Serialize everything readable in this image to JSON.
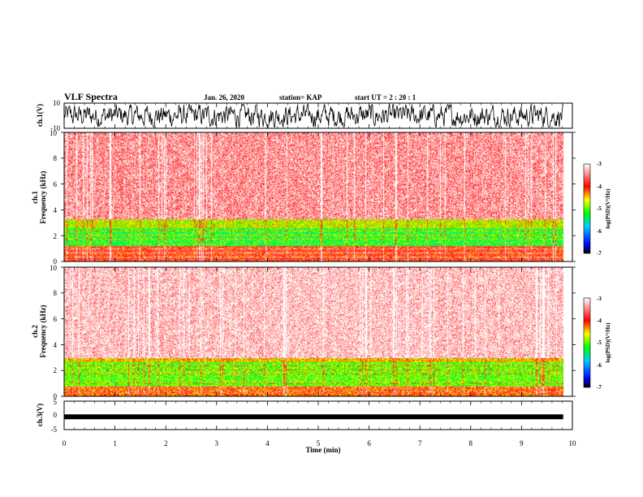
{
  "header": {
    "title": "VLF Spectra",
    "date": "Jan. 26, 2020",
    "station": "station= KAP",
    "start": "start  UT  =   2  : 20 : 1"
  },
  "chart_data": [
    {
      "type": "line",
      "panel": "ch1",
      "ylabel": "ch.1(V)",
      "ylim": [
        -10,
        10
      ],
      "yticks": [
        "10",
        "-10"
      ],
      "xlim": [
        0,
        10
      ],
      "color": "#000000",
      "description_note": ""
    },
    {
      "type": "heatmap",
      "panel": "ch1-spectrogram",
      "ylabel": "ch.1\nFrequency (kHz)",
      "ylabel_lines": [
        "ch.1",
        "Frequency (kHz)"
      ],
      "ylim": [
        0,
        10
      ],
      "yticks": [
        "0",
        "2",
        "4",
        "6",
        "8",
        "10"
      ],
      "xlim": [
        0,
        10
      ],
      "data_end_min": 9.82,
      "bands": [
        {
          "f_lo": 0.0,
          "f_hi": 1.2,
          "level": -4.0
        },
        {
          "f_lo": 1.2,
          "f_hi": 2.6,
          "level": -5.2
        },
        {
          "f_lo": 2.6,
          "f_hi": 3.3,
          "level": -4.7
        },
        {
          "f_lo": 3.3,
          "f_hi": 10.0,
          "level": -3.4
        }
      ],
      "colorbar": {
        "label": "log(PSD)(V²/Hz)",
        "range": [
          -7,
          -3
        ],
        "ticks": [
          "-3",
          "-4",
          "-5",
          "-6",
          "-7"
        ]
      }
    },
    {
      "type": "heatmap",
      "panel": "ch2-spectrogram",
      "ylabel": "ch.2\nFrequency (kHz)",
      "ylabel_lines": [
        "ch.2",
        "Frequency (kHz)"
      ],
      "ylim": [
        0,
        10
      ],
      "yticks": [
        "0",
        "2",
        "4",
        "6",
        "8",
        "10"
      ],
      "xlim": [
        0,
        10
      ],
      "data_end_min": 9.82,
      "bands": [
        {
          "f_lo": 0.0,
          "f_hi": 0.8,
          "level": -4.2
        },
        {
          "f_lo": 0.8,
          "f_hi": 2.7,
          "level": -5.0
        },
        {
          "f_lo": 2.7,
          "f_hi": 3.0,
          "level": -4.5
        },
        {
          "f_lo": 3.0,
          "f_hi": 10.0,
          "level": -3.2
        }
      ],
      "colorbar": {
        "label": "log(PSD)(V²/Hz)",
        "range": [
          -7,
          -3
        ],
        "ticks": [
          "-3",
          "-4",
          "-5",
          "-6",
          "-7"
        ]
      }
    },
    {
      "type": "line",
      "panel": "ch3",
      "ylabel": "ch.3(V)",
      "ylim": [
        -5,
        5
      ],
      "yticks": [
        "5",
        "0",
        "-5"
      ],
      "xlim": [
        0,
        10
      ],
      "xlabel": "Time (min)",
      "xticks": [
        "0",
        "1",
        "2",
        "3",
        "4",
        "5",
        "6",
        "7",
        "8",
        "9",
        "10"
      ],
      "baseline": -0.5,
      "color": "#000000"
    }
  ]
}
